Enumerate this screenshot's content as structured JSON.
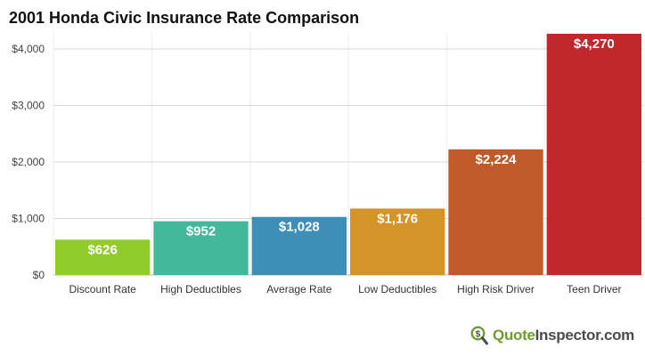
{
  "chart_data": {
    "type": "bar",
    "title": "2001 Honda Civic Insurance Rate Comparison",
    "categories": [
      "Discount Rate",
      "High Deductibles",
      "Average Rate",
      "Low Deductibles",
      "High Risk Driver",
      "Teen Driver"
    ],
    "values": [
      626,
      952,
      1028,
      1176,
      2224,
      4270
    ],
    "value_labels": [
      "$626",
      "$952",
      "$1,028",
      "$1,176",
      "$2,224",
      "$4,270"
    ],
    "colors": [
      "#8fcc2c",
      "#43b89a",
      "#3e8fb8",
      "#d4942a",
      "#c05a2a",
      "#c0282c"
    ],
    "ylim": [
      0,
      4300
    ],
    "yticks": [
      0,
      1000,
      2000,
      3000,
      4000
    ],
    "ytick_labels": [
      "$0",
      "$1,000",
      "$2,000",
      "$3,000",
      "$4,000"
    ],
    "grid": true,
    "xlabel": "",
    "ylabel": ""
  },
  "brand": {
    "quote": "Quote",
    "inspector": "Inspector",
    "suffix": ".com",
    "icon": "dollar-magnifier-icon",
    "quote_color": "#6e9c2e",
    "inspector_color": "#4b4b4b"
  }
}
